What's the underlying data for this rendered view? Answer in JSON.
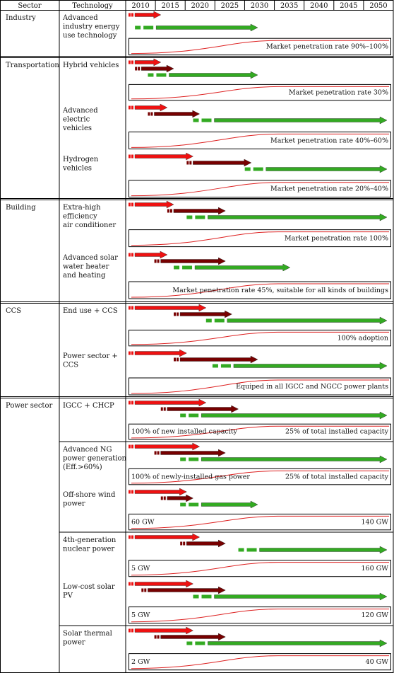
{
  "headers": {
    "sector": "Sector",
    "technology": "Technology"
  },
  "years": [
    "2010",
    "2015",
    "2020",
    "2025",
    "2030",
    "2035",
    "2040",
    "2045",
    "2050"
  ],
  "colors": {
    "demo": "#ee1111",
    "promotion": "#770000",
    "diffusion": "#33aa22",
    "curve": "#dd2222",
    "grid": "#000000"
  },
  "legend_note": "",
  "sectors": [
    {
      "name": "Industry",
      "techs": [
        {
          "label": [
            "Advanced",
            "industry energy",
            "use technology"
          ],
          "bars": {
            "demo": [
              2010,
              2015
            ],
            "promotion": null,
            "diffusion": [
              2011,
              2030
            ]
          },
          "box": {
            "texts": [
              "Market penetration rate 90%–100%"
            ]
          }
        }
      ]
    },
    {
      "name": "Transportation",
      "techs": [
        {
          "label": [
            "Hybrid vehicles"
          ],
          "bars": {
            "demo": [
              2010,
              2015
            ],
            "promotion": [
              2011,
              2017
            ],
            "diffusion": [
              2013,
              2030
            ]
          },
          "box": {
            "texts": [
              "Market penetration rate 30%"
            ]
          }
        },
        {
          "label": [
            "Advanced",
            "electric",
            "vehicles"
          ],
          "bars": {
            "demo": [
              2010,
              2016
            ],
            "promotion": [
              2013,
              2021
            ],
            "diffusion": [
              2020,
              2050
            ]
          },
          "box": {
            "texts": [
              "Market penetration rate 40%–60%"
            ]
          }
        },
        {
          "label": [
            "Hydrogen",
            "vehicles"
          ],
          "bars": {
            "demo": [
              2010,
              2020
            ],
            "promotion": [
              2019,
              2029
            ],
            "diffusion": [
              2028,
              2050
            ]
          },
          "box": {
            "texts": [
              "Market penetration rate 20%–40%"
            ]
          }
        }
      ]
    },
    {
      "name": "Building",
      "techs": [
        {
          "label": [
            "Extra-high",
            "efficiency",
            "air conditioner"
          ],
          "bars": {
            "demo": [
              2010,
              2017
            ],
            "promotion": [
              2016,
              2025
            ],
            "diffusion": [
              2019,
              2050
            ]
          },
          "box": {
            "texts": [
              "Market penetration rate 100%"
            ]
          }
        },
        {
          "label": [
            "Advanced solar",
            "water heater",
            "and heating"
          ],
          "bars": {
            "demo": [
              2010,
              2016
            ],
            "promotion": [
              2014,
              2025
            ],
            "diffusion": [
              2017,
              2035
            ]
          },
          "box": {
            "texts": [
              "Market penetration rate 45%, suitable for all kinds of buildings"
            ]
          }
        }
      ]
    },
    {
      "name": "CCS",
      "techs": [
        {
          "label": [
            "End use + CCS"
          ],
          "bars": {
            "demo": [
              2010,
              2022
            ],
            "promotion": [
              2017,
              2026
            ],
            "diffusion": [
              2022,
              2050
            ]
          },
          "box": {
            "texts": [
              "100% adoption"
            ]
          }
        },
        {
          "label": [
            "Power sector +",
            "CCS"
          ],
          "bars": {
            "demo": [
              2010,
              2019
            ],
            "promotion": [
              2017,
              2030
            ],
            "diffusion": [
              2023,
              2050
            ]
          },
          "box": {
            "texts": [
              "Equiped in all IGCC and NGCC power plants"
            ]
          }
        }
      ]
    },
    {
      "name": "Power sector",
      "techs": [
        {
          "label": [
            "IGCC + CHCP"
          ],
          "bars": {
            "demo": [
              2010,
              2022
            ],
            "promotion": [
              2015,
              2027
            ],
            "diffusion": [
              2018,
              2050
            ]
          },
          "box": {
            "texts": [
              "100% of new installed capacity",
              "25% of total installed capacity"
            ]
          }
        },
        {
          "label": [
            "Advanced NG",
            "power generation",
            "(Eff.>60%)"
          ],
          "bars": {
            "demo": [
              2010,
              2021
            ],
            "promotion": [
              2014,
              2025
            ],
            "diffusion": [
              2018,
              2050
            ]
          },
          "box": {
            "texts": [
              "100% of newly-installed gas power",
              "25% of total installed capacity"
            ]
          }
        },
        {
          "label": [
            "Off-shore wind",
            "power"
          ],
          "bars": {
            "demo": [
              2010,
              2019
            ],
            "promotion": [
              2015,
              2020
            ],
            "diffusion": [
              2018,
              2030
            ]
          },
          "box": {
            "texts": [
              "60 GW",
              "140 GW"
            ]
          }
        },
        {
          "label": [
            "4th-generation",
            "nuclear power"
          ],
          "bars": {
            "demo": [
              2010,
              2021
            ],
            "promotion": [
              2018,
              2025
            ],
            "diffusion": [
              2027,
              2050
            ]
          },
          "box": {
            "texts": [
              "5 GW",
              "160 GW"
            ]
          }
        },
        {
          "label": [
            "Low-cost solar",
            "PV"
          ],
          "bars": {
            "demo": [
              2010,
              2020
            ],
            "promotion": [
              2012,
              2025
            ],
            "diffusion": [
              2020,
              2050
            ]
          },
          "box": {
            "texts": [
              "5 GW",
              "120 GW"
            ]
          }
        },
        {
          "label": [
            "Solar thermal",
            "power"
          ],
          "bars": {
            "demo": [
              2010,
              2020
            ],
            "promotion": [
              2014,
              2025
            ],
            "diffusion": [
              2019,
              2050
            ]
          },
          "box": {
            "texts": [
              "2 GW",
              "40 GW"
            ]
          }
        }
      ]
    }
  ]
}
